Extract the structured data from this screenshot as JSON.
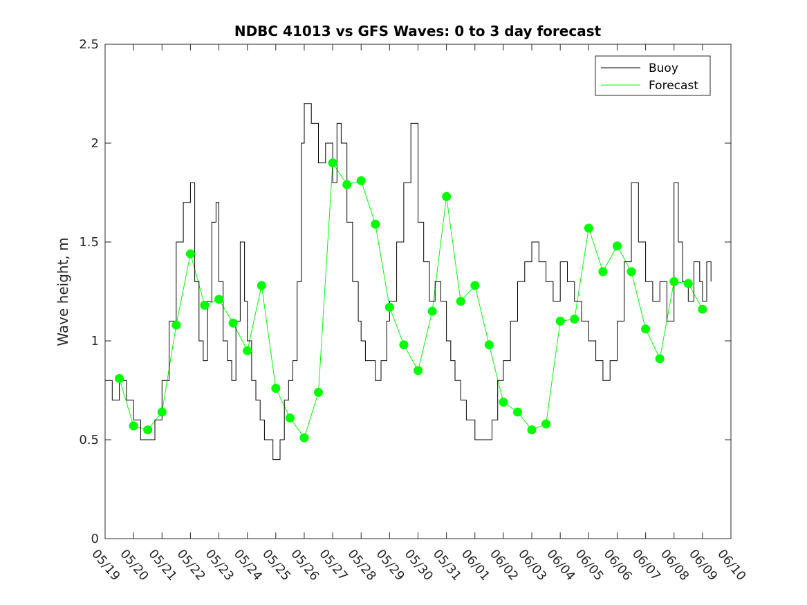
{
  "chart_data": {
    "type": "line",
    "title": "NDBC 41013 vs GFS Waves: 0 to 3 day forecast",
    "xlabel": "",
    "ylabel": "Wave height, m",
    "ylim": [
      0,
      2.5
    ],
    "yticks": [
      "0",
      "0.5",
      "1",
      "1.5",
      "2",
      "2.5"
    ],
    "xlim_days": [
      0,
      22
    ],
    "x_tick_labels": [
      "05/19",
      "05/20",
      "05/21",
      "05/22",
      "05/23",
      "05/24",
      "05/25",
      "05/26",
      "05/27",
      "05/28",
      "05/29",
      "05/30",
      "05/31",
      "06/01",
      "06/02",
      "06/03",
      "06/04",
      "06/05",
      "06/06",
      "06/07",
      "06/08",
      "06/09",
      "06/10"
    ],
    "grid": false,
    "legend": {
      "placement": "top-right",
      "entries": [
        "Buoy",
        "Forecast"
      ]
    },
    "colors": {
      "buoy": "#000000",
      "forecast": "#00ff00",
      "axes": "#262626"
    },
    "series": [
      {
        "name": "Buoy",
        "x": [
          0,
          0.25,
          0.5,
          0.75,
          1,
          1.25,
          1.5,
          1.75,
          2,
          2.25,
          2.5,
          2.75,
          3,
          3.15,
          3.3,
          3.45,
          3.6,
          3.75,
          3.9,
          4,
          4.15,
          4.3,
          4.45,
          4.6,
          4.75,
          4.9,
          5,
          5.15,
          5.3,
          5.45,
          5.6,
          5.75,
          5.9,
          6,
          6.15,
          6.3,
          6.45,
          6.6,
          6.75,
          6.9,
          7,
          7.25,
          7.5,
          7.75,
          8,
          8.15,
          8.3,
          8.5,
          8.7,
          8.9,
          9,
          9.15,
          9.3,
          9.5,
          9.7,
          9.9,
          10,
          10.25,
          10.5,
          10.75,
          11,
          11.2,
          11.4,
          11.6,
          11.8,
          12,
          12.15,
          12.3,
          12.5,
          12.7,
          12.9,
          13,
          13.2,
          13.4,
          13.6,
          13.8,
          14,
          14.25,
          14.5,
          14.75,
          15,
          15.25,
          15.5,
          15.75,
          16,
          16.25,
          16.5,
          16.75,
          17,
          17.25,
          17.5,
          17.75,
          18,
          18.25,
          18.5,
          18.75,
          19,
          19.25,
          19.5,
          19.75,
          20,
          20.15,
          20.3,
          20.5,
          20.7,
          20.9,
          21,
          21.15,
          21.3
        ],
        "y": [
          0.8,
          0.7,
          0.8,
          0.7,
          0.6,
          0.5,
          0.5,
          0.6,
          0.8,
          1.1,
          1.5,
          1.7,
          1.8,
          1.3,
          1.0,
          0.9,
          1.2,
          1.6,
          1.7,
          1.3,
          1.0,
          0.9,
          0.8,
          1.1,
          1.5,
          1.2,
          1.0,
          0.8,
          0.7,
          0.6,
          0.5,
          0.5,
          0.4,
          0.4,
          0.5,
          0.7,
          0.8,
          0.9,
          1.3,
          2.0,
          2.2,
          2.1,
          1.9,
          2.0,
          1.8,
          2.1,
          2.0,
          1.6,
          1.3,
          1.1,
          1.0,
          0.9,
          0.9,
          0.8,
          0.9,
          1.1,
          1.2,
          1.5,
          1.8,
          2.1,
          1.6,
          1.4,
          1.2,
          1.3,
          1.2,
          1.0,
          0.9,
          0.8,
          0.7,
          0.6,
          0.6,
          0.5,
          0.5,
          0.5,
          0.6,
          0.8,
          0.9,
          1.1,
          1.3,
          1.4,
          1.5,
          1.4,
          1.3,
          1.2,
          1.4,
          1.3,
          1.2,
          1.1,
          1.0,
          0.9,
          0.8,
          0.9,
          1.1,
          1.4,
          1.8,
          1.5,
          1.3,
          1.2,
          1.3,
          1.1,
          1.8,
          1.5,
          1.3,
          1.2,
          1.4,
          1.3,
          1.2,
          1.4,
          1.3
        ]
      },
      {
        "name": "Forecast",
        "x": [
          0.5,
          1,
          1.5,
          2,
          2.5,
          3,
          3.5,
          4,
          4.5,
          5,
          5.5,
          6,
          6.5,
          7,
          7.5,
          8,
          8.5,
          9,
          9.5,
          10,
          10.5,
          11,
          11.5,
          12,
          12.5,
          13,
          13.5,
          14,
          14.5,
          15,
          15.5,
          16,
          16.5,
          17,
          17.5,
          18,
          18.5,
          19,
          19.5,
          20,
          20.5,
          21
        ],
        "y": [
          0.81,
          0.57,
          0.55,
          0.64,
          1.08,
          1.44,
          1.18,
          1.21,
          1.09,
          0.95,
          1.28,
          0.76,
          0.61,
          0.51,
          0.74,
          1.9,
          1.79,
          1.81,
          1.59,
          1.17,
          0.98,
          0.85,
          1.15,
          1.73,
          1.2,
          1.28,
          0.98,
          0.69,
          0.64,
          0.55,
          0.58,
          1.1,
          1.11,
          1.57,
          1.35,
          1.48,
          1.35,
          1.06,
          0.91,
          1.3,
          1.29,
          1.16
        ]
      }
    ]
  }
}
